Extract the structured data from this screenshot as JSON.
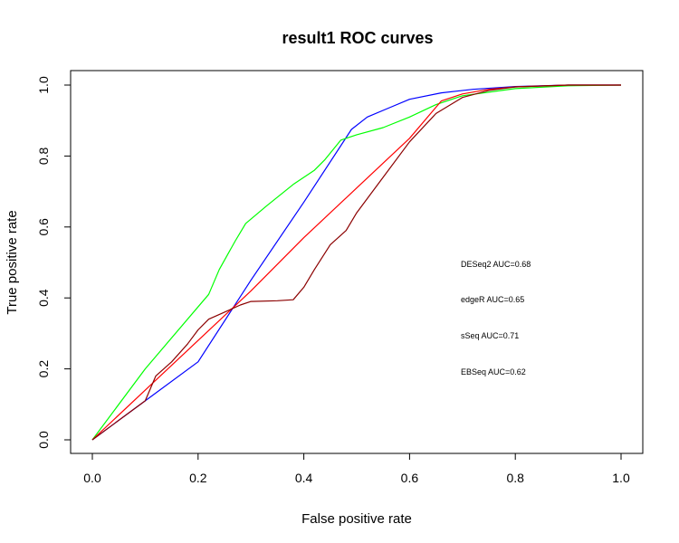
{
  "chart_data": {
    "type": "line",
    "title": "result1 ROC curves",
    "xlabel": "False positive rate",
    "ylabel": "True positive rate",
    "xlim": [
      0,
      1
    ],
    "ylim": [
      0,
      1
    ],
    "x_ticks": [
      "0.0",
      "0.2",
      "0.4",
      "0.6",
      "0.8",
      "1.0"
    ],
    "y_ticks": [
      "0.0",
      "0.2",
      "0.4",
      "0.6",
      "0.8",
      "1.0"
    ],
    "grid": false,
    "annotations": [
      "DESeq2 AUC=0.68",
      "edgeR AUC=0.65",
      "sSeq AUC=0.71",
      "EBSeq AUC=0.62"
    ],
    "series": [
      {
        "color": "#0000ff",
        "x": [
          0,
          0.1,
          0.2,
          0.3,
          0.4,
          0.49,
          0.52,
          0.56,
          0.6,
          0.66,
          0.72,
          0.8,
          0.9,
          1.0
        ],
        "y": [
          0,
          0.11,
          0.22,
          0.45,
          0.67,
          0.875,
          0.91,
          0.935,
          0.96,
          0.978,
          0.988,
          0.996,
          1.0,
          1.0
        ]
      },
      {
        "color": "#00ff00",
        "x": [
          0,
          0.1,
          0.22,
          0.24,
          0.27,
          0.29,
          0.33,
          0.38,
          0.42,
          0.44,
          0.47,
          0.5,
          0.55,
          0.6,
          0.65,
          0.7,
          0.8,
          0.9,
          1.0
        ],
        "y": [
          0,
          0.2,
          0.41,
          0.48,
          0.56,
          0.61,
          0.66,
          0.72,
          0.76,
          0.79,
          0.845,
          0.86,
          0.88,
          0.91,
          0.945,
          0.97,
          0.99,
          0.998,
          1.0
        ]
      },
      {
        "color": "#ff0000",
        "x": [
          0,
          0.1,
          0.2,
          0.3,
          0.4,
          0.5,
          0.6,
          0.66,
          0.7,
          0.75,
          0.8,
          0.9,
          1.0
        ],
        "y": [
          0,
          0.14,
          0.28,
          0.42,
          0.57,
          0.71,
          0.85,
          0.955,
          0.975,
          0.988,
          0.995,
          1.0,
          1.0
        ]
      },
      {
        "color": "#8b0000",
        "x": [
          0,
          0.1,
          0.12,
          0.15,
          0.18,
          0.2,
          0.22,
          0.25,
          0.28,
          0.3,
          0.35,
          0.38,
          0.4,
          0.42,
          0.45,
          0.48,
          0.5,
          0.55,
          0.6,
          0.65,
          0.7,
          0.75,
          0.8,
          0.9,
          1.0
        ],
        "y": [
          0,
          0.11,
          0.18,
          0.22,
          0.27,
          0.31,
          0.34,
          0.36,
          0.38,
          0.39,
          0.392,
          0.395,
          0.43,
          0.48,
          0.55,
          0.59,
          0.64,
          0.74,
          0.84,
          0.92,
          0.965,
          0.985,
          0.995,
          1.0,
          1.0
        ]
      }
    ]
  }
}
